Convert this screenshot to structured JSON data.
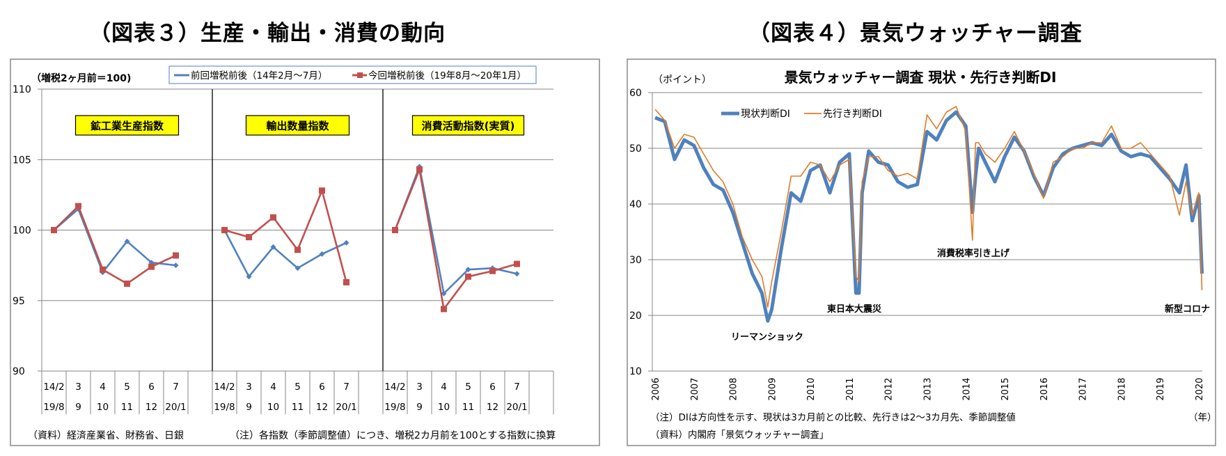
{
  "left_figure": {
    "heading": "（図表３）生産・輸出・消費の動向",
    "unit_note": "（増税2ヶ月前＝100)",
    "source_note": "（資料）経済産業省、財務省、日銀",
    "footnote": "（注）各指数（季節調整値）につき、増税2カ月前を100とする指数に換算"
  },
  "right_figure": {
    "heading": "（図表４）景気ウォッチャー調査",
    "footnote": "（注）DIは方向性を示す、現状は3カ月前との比較、先行きは2～3カ月先、季節調整値",
    "source_note": "（資料）内閣府「景気ウォッチャー調査」",
    "year_unit": "（年）"
  },
  "colors": {
    "blue": "#4F81BD",
    "red": "#C0504D",
    "orange": "#E07B25",
    "yellow": "#FFFF00",
    "grid": "#868686"
  },
  "chart_data": [
    {
      "type": "line",
      "title": "",
      "ylabel": "（増税2ヶ月前＝100)",
      "ylim": [
        90,
        110
      ],
      "yticks": [
        90,
        95,
        100,
        105,
        110
      ],
      "grid": true,
      "legend": "top",
      "series_names": [
        "前回増税前後（14年2月～7月）",
        "今回増税前後（19年8月～20年1月）"
      ],
      "categories_row1": [
        "14/2",
        "3",
        "4",
        "5",
        "6",
        "7"
      ],
      "categories_row2": [
        "19/8",
        "9",
        "10",
        "11",
        "12",
        "20/1"
      ],
      "panels": [
        {
          "label": "鉱工業生産指数",
          "series": [
            {
              "name": "前回増税前後（14年2月～7月）",
              "values": [
                100.0,
                101.5,
                97.0,
                99.2,
                97.7,
                97.5
              ]
            },
            {
              "name": "今回増税前後（19年8月～20年1月）",
              "values": [
                100.0,
                101.7,
                97.2,
                96.2,
                97.4,
                98.2
              ]
            }
          ]
        },
        {
          "label": "輸出数量指数",
          "series": [
            {
              "name": "前回増税前後（14年2月～7月）",
              "values": [
                100.0,
                96.7,
                98.8,
                97.3,
                98.3,
                99.1
              ]
            },
            {
              "name": "今回増税前後（19年8月～20年1月）",
              "values": [
                100.0,
                99.5,
                100.9,
                98.6,
                102.8,
                96.3
              ]
            }
          ]
        },
        {
          "label": "消費活動指数(実質)",
          "series": [
            {
              "name": "前回増税前後（14年2月～7月）",
              "values": [
                100.0,
                104.5,
                95.5,
                97.2,
                97.3,
                96.9
              ]
            },
            {
              "name": "今回増税前後（19年8月～20年1月）",
              "values": [
                100.0,
                104.3,
                94.4,
                96.7,
                97.1,
                97.6
              ]
            }
          ]
        }
      ]
    },
    {
      "type": "line",
      "title": "景気ウォッチャー調査 現状・先行き判断DI",
      "ylabel": "（ポイント）",
      "xlabel": "（年）",
      "ylim": [
        10,
        60
      ],
      "yticks": [
        10,
        20,
        30,
        40,
        50,
        60
      ],
      "xticks": [
        "2006",
        "2007",
        "2008",
        "2009",
        "2010",
        "2011",
        "2012",
        "2013",
        "2014",
        "2015",
        "2016",
        "2017",
        "2018",
        "2019",
        "2020"
      ],
      "grid": true,
      "legend": "top-left",
      "annotations": [
        "リーマンショック",
        "東日本大震災",
        "消費税率引き上げ",
        "新型コロナ"
      ],
      "x": [
        2006.0,
        2006.25,
        2006.5,
        2006.75,
        2007.0,
        2007.25,
        2007.5,
        2007.75,
        2008.0,
        2008.25,
        2008.5,
        2008.75,
        2008.9,
        2009.0,
        2009.25,
        2009.5,
        2009.75,
        2010.0,
        2010.25,
        2010.5,
        2010.75,
        2011.0,
        2011.17,
        2011.25,
        2011.33,
        2011.5,
        2011.75,
        2012.0,
        2012.25,
        2012.5,
        2012.75,
        2013.0,
        2013.25,
        2013.5,
        2013.75,
        2014.0,
        2014.17,
        2014.25,
        2014.33,
        2014.5,
        2014.75,
        2015.0,
        2015.25,
        2015.5,
        2015.75,
        2016.0,
        2016.25,
        2016.5,
        2016.75,
        2017.0,
        2017.25,
        2017.5,
        2017.75,
        2018.0,
        2018.25,
        2018.5,
        2018.75,
        2019.0,
        2019.25,
        2019.5,
        2019.67,
        2019.83,
        2020.0,
        2020.08
      ],
      "series": [
        {
          "name": "現状判断DI",
          "values": [
            55.5,
            54.8,
            48.0,
            51.5,
            50.5,
            46.5,
            43.5,
            42.5,
            38.5,
            33.0,
            27.5,
            24.0,
            19.0,
            21.0,
            32.0,
            42.0,
            40.5,
            46.0,
            47.0,
            42.0,
            47.5,
            49.0,
            24.0,
            24.0,
            42.0,
            49.5,
            47.5,
            47.0,
            44.0,
            43.0,
            43.5,
            53.0,
            51.5,
            55.0,
            56.5,
            54.0,
            38.5,
            45.0,
            50.0,
            47.5,
            44.0,
            48.5,
            52.0,
            49.5,
            45.0,
            41.5,
            46.5,
            49.0,
            50.0,
            50.5,
            51.0,
            50.5,
            52.5,
            49.5,
            48.5,
            49.0,
            48.5,
            46.5,
            44.5,
            42.0,
            47.0,
            37.0,
            41.5,
            27.5
          ]
        },
        {
          "name": "先行き判断DI",
          "values": [
            57.0,
            55.0,
            50.0,
            52.5,
            52.0,
            49.0,
            46.0,
            44.0,
            40.0,
            34.0,
            30.0,
            27.0,
            21.5,
            26.0,
            35.0,
            45.0,
            45.0,
            47.5,
            47.0,
            44.0,
            47.0,
            48.0,
            27.0,
            26.0,
            44.0,
            48.5,
            48.5,
            46.0,
            45.0,
            45.5,
            44.5,
            56.0,
            53.5,
            56.5,
            57.5,
            53.0,
            33.5,
            51.0,
            51.0,
            49.0,
            47.5,
            50.0,
            53.0,
            49.5,
            45.5,
            41.0,
            47.5,
            48.5,
            50.0,
            50.0,
            51.0,
            51.0,
            54.0,
            50.0,
            50.0,
            51.0,
            49.0,
            47.0,
            45.0,
            38.0,
            44.0,
            38.0,
            42.0,
            24.5
          ]
        }
      ]
    }
  ]
}
